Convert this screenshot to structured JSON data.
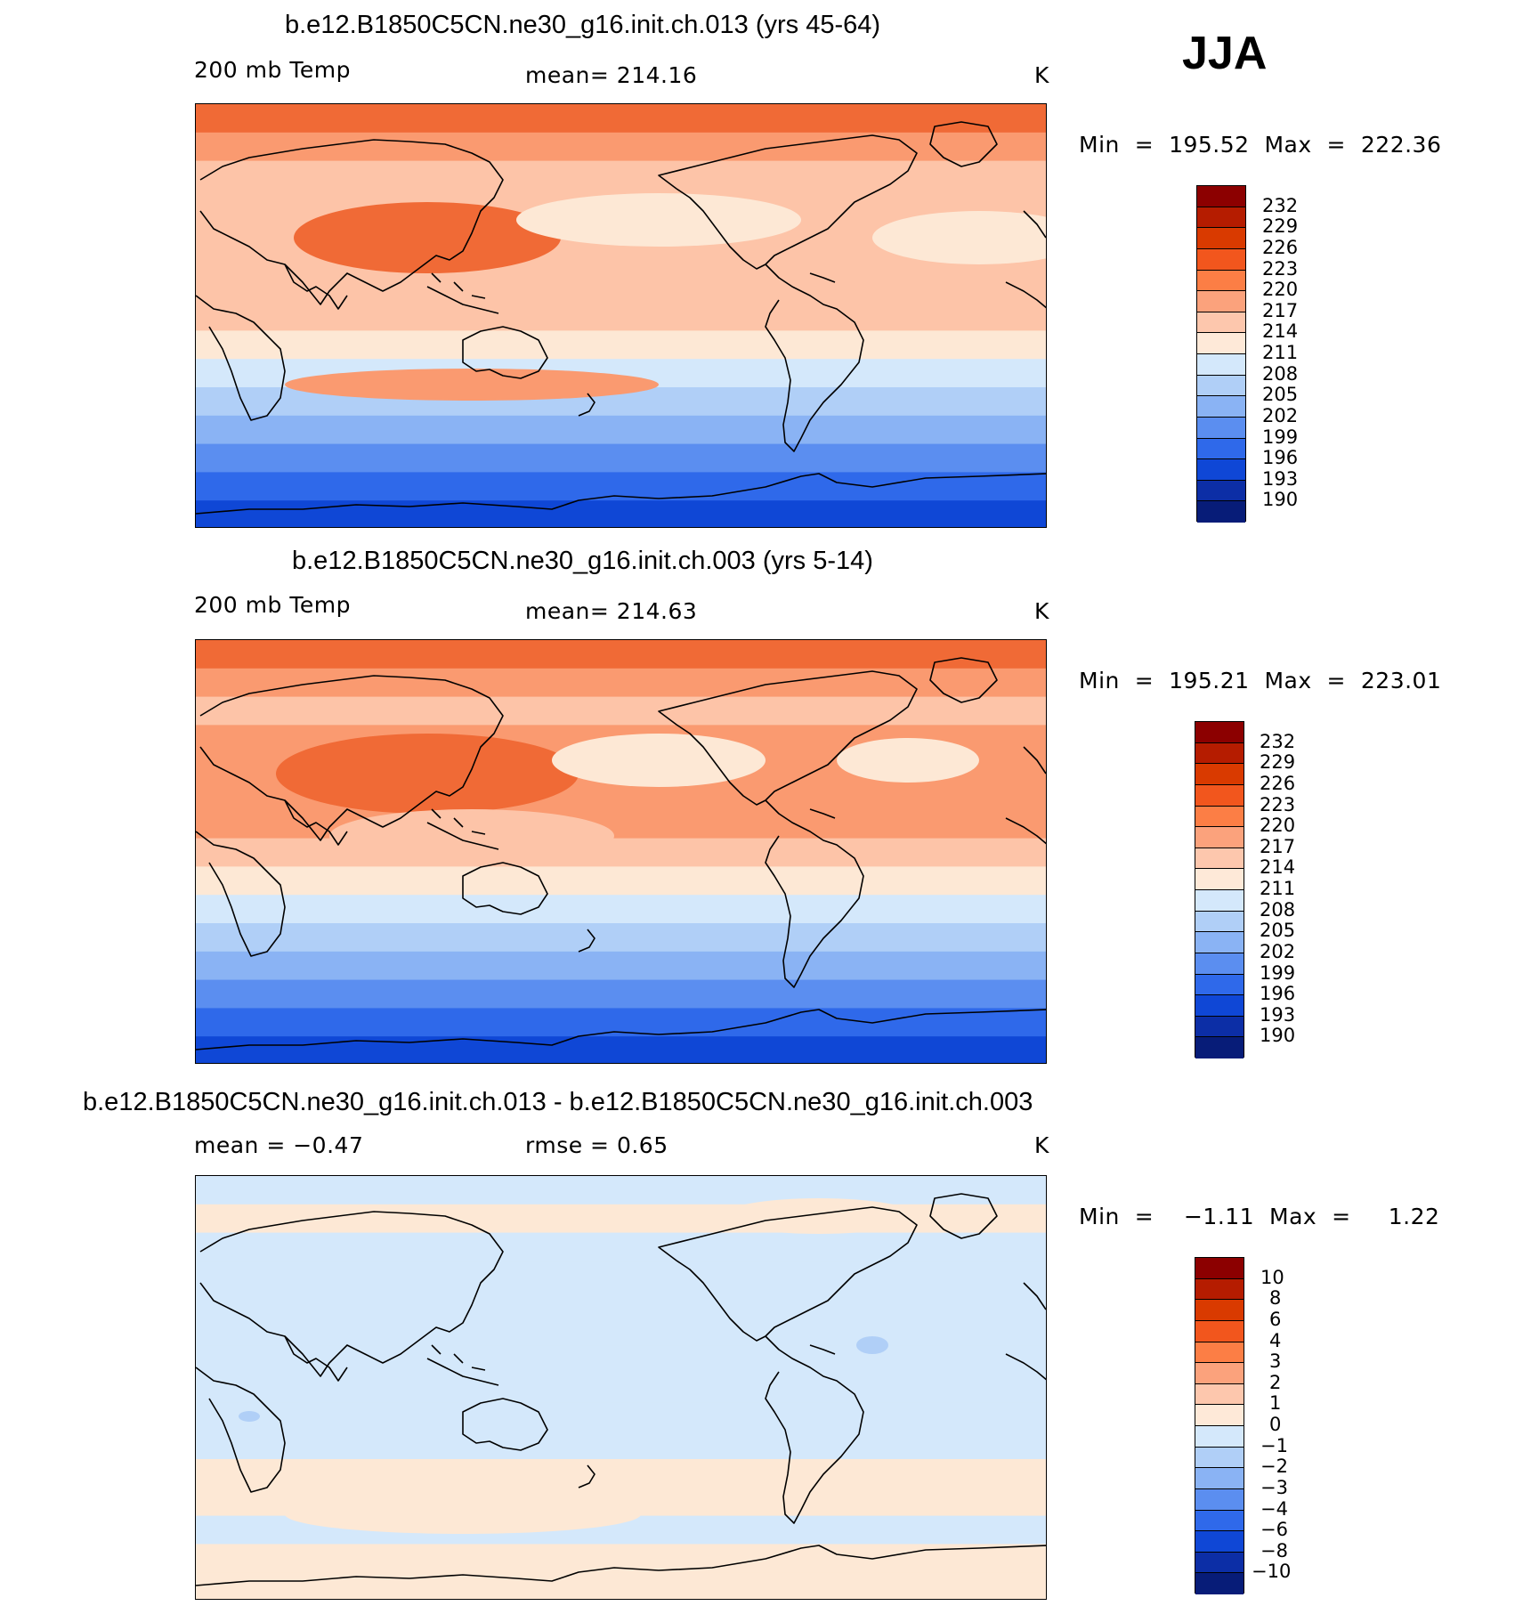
{
  "season": "JJA",
  "panels": [
    {
      "title": "b.e12.B1850C5CN.ne30_g16.init.ch.013 (yrs 45-64)",
      "left_label": "200 mb Temp",
      "center_label": "mean=  214.16",
      "units": "K",
      "min_max": "Min  =  195.52  Max  =  222.36",
      "type": "field",
      "colorbar": {
        "levels": [
          "232",
          "229",
          "226",
          "223",
          "220",
          "217",
          "214",
          "211",
          "208",
          "205",
          "202",
          "199",
          "196",
          "193",
          "190"
        ],
        "colors": [
          "#8c0000",
          "#b51c00",
          "#d93a00",
          "#f2561d",
          "#fc7e45",
          "#fba27c",
          "#fdc7ad",
          "#fee9d8",
          "#d4e8fb",
          "#b0cff7",
          "#8ab3f4",
          "#5b8ef0",
          "#2f69ea",
          "#0f47d6",
          "#0c2ea6",
          "#071c78"
        ]
      },
      "bands": [
        "#f06a36",
        "#fa9a70",
        "#fdc4a8",
        "#fdc4a8",
        "#fdc4a8",
        "#fdc4a8",
        "#fdc4a8",
        "#fdc4a8",
        "#fde8d5",
        "#d4e8fb",
        "#b0cff7",
        "#8ab3f4",
        "#5b8ef0",
        "#2f69ea",
        "#0f47d6"
      ]
    },
    {
      "title": "b.e12.B1850C5CN.ne30_g16.init.ch.003 (yrs 5-14)",
      "left_label": "200 mb Temp",
      "center_label": "mean=  214.63",
      "units": "K",
      "min_max": "Min  =  195.21  Max  =  223.01",
      "type": "field",
      "colorbar": {
        "levels": [
          "232",
          "229",
          "226",
          "223",
          "220",
          "217",
          "214",
          "211",
          "208",
          "205",
          "202",
          "199",
          "196",
          "193",
          "190"
        ],
        "colors": [
          "#8c0000",
          "#b51c00",
          "#d93a00",
          "#f2561d",
          "#fc7e45",
          "#fba27c",
          "#fdc7ad",
          "#fee9d8",
          "#d4e8fb",
          "#b0cff7",
          "#8ab3f4",
          "#5b8ef0",
          "#2f69ea",
          "#0f47d6",
          "#0c2ea6",
          "#071c78"
        ]
      },
      "bands": [
        "#f06a36",
        "#fa9a70",
        "#fdc4a8",
        "#fa9a70",
        "#fa9a70",
        "#fa9a70",
        "#fa9a70",
        "#fdc4a8",
        "#fde8d5",
        "#d4e8fb",
        "#b0cff7",
        "#8ab3f4",
        "#5b8ef0",
        "#2f69ea",
        "#0f47d6"
      ]
    },
    {
      "title": "b.e12.B1850C5CN.ne30_g16.init.ch.013 - b.e12.B1850C5CN.ne30_g16.init.ch.003",
      "left_label": "mean  =    −0.47",
      "center_label": "rmse  =     0.65",
      "units": "K",
      "min_max": "Min  =    −1.11  Max  =     1.22",
      "type": "diff",
      "colorbar": {
        "levels": [
          "10",
          "8",
          "6",
          "4",
          "3",
          "2",
          "1",
          "0",
          "−1",
          "−2",
          "−3",
          "−4",
          "−6",
          "−8",
          "−10"
        ],
        "colors": [
          "#8c0000",
          "#b51c00",
          "#d93a00",
          "#f2561d",
          "#fc7e45",
          "#fba27c",
          "#fdc7ad",
          "#fee9d8",
          "#d4e8fb",
          "#b0cff7",
          "#8ab3f4",
          "#5b8ef0",
          "#2f69ea",
          "#0f47d6",
          "#0c2ea6",
          "#071c78"
        ]
      },
      "bands": [
        "#d4e8fb",
        "#fde8d5",
        "#d4e8fb",
        "#d4e8fb",
        "#d4e8fb",
        "#d4e8fb",
        "#d4e8fb",
        "#d4e8fb",
        "#d4e8fb",
        "#d4e8fb",
        "#fde8d5",
        "#fde8d5",
        "#d4e8fb",
        "#fde8d5",
        "#fde8d5"
      ]
    }
  ]
}
